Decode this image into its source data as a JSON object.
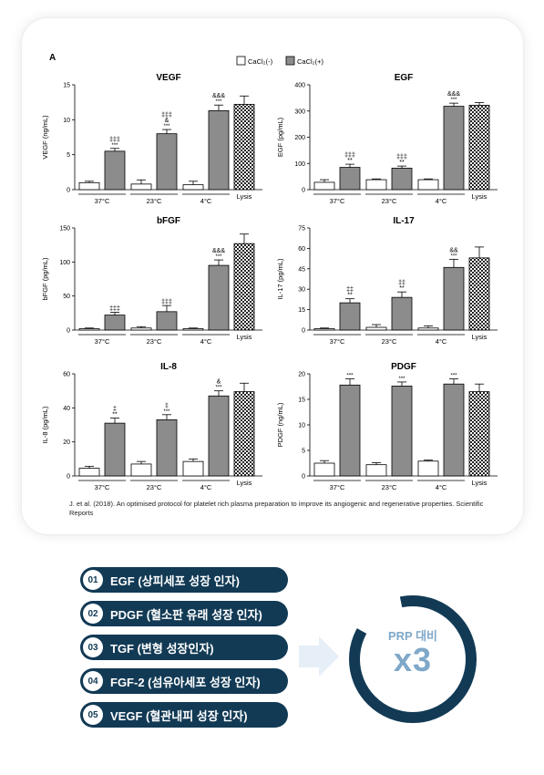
{
  "panel_label": "A",
  "legend": [
    {
      "label": "CaCl₂(-)",
      "swatch": "white"
    },
    {
      "label": "CaCl₂(+)",
      "swatch": "gray"
    }
  ],
  "colors": {
    "minus": "#ffffff",
    "plus": "#8c8c8c",
    "navy": "#123a55",
    "accent": "#7fa8c9",
    "arrow": "#e6eef7"
  },
  "chart_data": [
    {
      "type": "bar",
      "title": "VEGF",
      "ylabel": "VEGF (ng/mL)",
      "ylim": [
        0,
        15
      ],
      "yticks": [
        "0",
        "5",
        "10",
        "15"
      ],
      "ytick_values": [
        0,
        5,
        10,
        15
      ],
      "groups": [
        "37°C",
        "23°C",
        "4°C"
      ],
      "extra": "Lysis",
      "series": [
        {
          "name": "CaCl₂(-)",
          "values": [
            1.0,
            0.8,
            0.7
          ],
          "errors": [
            0.2,
            0.6,
            0.5
          ]
        },
        {
          "name": "CaCl₂(+)",
          "values": [
            5.5,
            8.0,
            11.3
          ],
          "errors": [
            0.4,
            0.6,
            0.8
          ]
        }
      ],
      "lysis": {
        "value": 12.2,
        "error": 1.2
      },
      "annotations": [
        [
          "***",
          "‡‡‡"
        ],
        [
          "***",
          "&",
          "‡‡‡"
        ],
        [
          "***",
          "&&&"
        ]
      ]
    },
    {
      "type": "bar",
      "title": "EGF",
      "ylabel": "EGF (pg/mL)",
      "ylim": [
        0,
        400
      ],
      "yticks": [
        "0",
        "100",
        "200",
        "300",
        "400"
      ],
      "ytick_values": [
        0,
        100,
        200,
        300,
        400
      ],
      "groups": [
        "37°C",
        "23°C",
        "4°C"
      ],
      "extra": "Lysis",
      "series": [
        {
          "name": "CaCl₂(-)",
          "values": [
            28,
            38,
            38
          ],
          "errors": [
            10,
            3,
            3
          ]
        },
        {
          "name": "CaCl₂(+)",
          "values": [
            85,
            82,
            318
          ],
          "errors": [
            12,
            8,
            12
          ]
        }
      ],
      "lysis": {
        "value": 322,
        "error": 10
      },
      "annotations": [
        [
          "**",
          "‡‡‡"
        ],
        [
          "**",
          "‡‡‡"
        ],
        [
          "***",
          "&&&"
        ]
      ]
    },
    {
      "type": "bar",
      "title": "bFGF",
      "ylabel": "bFGF (pg/mL)",
      "ylim": [
        0,
        150
      ],
      "yticks": [
        "0",
        "50",
        "100",
        "150"
      ],
      "ytick_values": [
        0,
        50,
        100,
        150
      ],
      "groups": [
        "37°C",
        "23°C",
        "4°C"
      ],
      "extra": "Lysis",
      "series": [
        {
          "name": "CaCl₂(-)",
          "values": [
            2,
            3,
            2
          ],
          "errors": [
            1,
            2,
            1
          ]
        },
        {
          "name": "CaCl₂(+)",
          "values": [
            22,
            27,
            95
          ],
          "errors": [
            4,
            9,
            8
          ]
        }
      ],
      "lysis": {
        "value": 127,
        "error": 14
      },
      "annotations": [
        [
          "‡‡‡"
        ],
        [
          "‡‡‡"
        ],
        [
          "***",
          "&&&"
        ]
      ]
    },
    {
      "type": "bar",
      "title": "IL-17",
      "ylabel": "IL-17 (pg/mL)",
      "ylim": [
        0,
        75
      ],
      "yticks": [
        "0",
        "15",
        "30",
        "45",
        "60",
        "75"
      ],
      "ytick_values": [
        0,
        15,
        30,
        45,
        60,
        75
      ],
      "groups": [
        "37°C",
        "23°C",
        "4°C"
      ],
      "extra": "Lysis",
      "series": [
        {
          "name": "CaCl₂(-)",
          "values": [
            1,
            2,
            1.5
          ],
          "errors": [
            0.5,
            2,
            1.5
          ]
        },
        {
          "name": "CaCl₂(+)",
          "values": [
            20,
            24,
            46
          ],
          "errors": [
            3,
            4,
            6
          ]
        }
      ],
      "lysis": {
        "value": 53,
        "error": 8
      },
      "annotations": [
        [
          "**",
          "‡‡"
        ],
        [
          "**",
          "‡‡"
        ],
        [
          "***",
          "&&"
        ]
      ]
    },
    {
      "type": "bar",
      "title": "IL-8",
      "ylabel": "IL-8 (pg/mL)",
      "ylim": [
        0,
        60
      ],
      "yticks": [
        "0",
        "20",
        "40",
        "60"
      ],
      "ytick_values": [
        0,
        20,
        40,
        60
      ],
      "groups": [
        "37°C",
        "23°C",
        "4°C"
      ],
      "extra": "Lysis",
      "series": [
        {
          "name": "CaCl₂(-)",
          "values": [
            4.5,
            7,
            8.5
          ],
          "errors": [
            1.2,
            1.5,
            1.5
          ]
        },
        {
          "name": "CaCl₂(+)",
          "values": [
            31,
            33,
            47
          ],
          "errors": [
            3,
            3,
            3
          ]
        }
      ],
      "lysis": {
        "value": 49.5,
        "error": 5
      },
      "annotations": [
        [
          "**",
          "‡"
        ],
        [
          "***",
          "‡"
        ],
        [
          "***",
          "&"
        ]
      ]
    },
    {
      "type": "bar",
      "title": "PDGF",
      "ylabel": "PDGF (ng/mL)",
      "ylim": [
        0,
        20
      ],
      "yticks": [
        "0",
        "5",
        "10",
        "15",
        "20"
      ],
      "ytick_values": [
        0,
        5,
        10,
        15,
        20
      ],
      "groups": [
        "37°C",
        "23°C",
        "4°C"
      ],
      "extra": "Lysis",
      "series": [
        {
          "name": "CaCl₂(-)",
          "values": [
            2.5,
            2.2,
            2.9
          ],
          "errors": [
            0.5,
            0.4,
            0.2
          ]
        },
        {
          "name": "CaCl₂(+)",
          "values": [
            17.8,
            17.6,
            18.0
          ],
          "errors": [
            1.2,
            0.8,
            1.0
          ]
        }
      ],
      "lysis": {
        "value": 16.5,
        "error": 1.5
      },
      "annotations": [
        [
          "***"
        ],
        [
          "***"
        ],
        [
          "***"
        ]
      ]
    }
  ],
  "citation": "J. et al. (2018). An optimised protocol for platelet rich plasma preparation to improve its angiogenic and regenerative properties. Scientific Reports",
  "features": [
    {
      "num": "01",
      "text": "EGF (상피세포 성장 인자)"
    },
    {
      "num": "02",
      "text": "PDGF (혈소판 유래 성장 인자)"
    },
    {
      "num": "03",
      "text": "TGF (변형 성장인자)"
    },
    {
      "num": "04",
      "text": "FGF-2 (섬유아세포 성장 인자)"
    },
    {
      "num": "05",
      "text": "VEGF (혈관내피 성장 인자)"
    }
  ],
  "badge": {
    "line1": "PRP 대비",
    "line2": "x3"
  }
}
